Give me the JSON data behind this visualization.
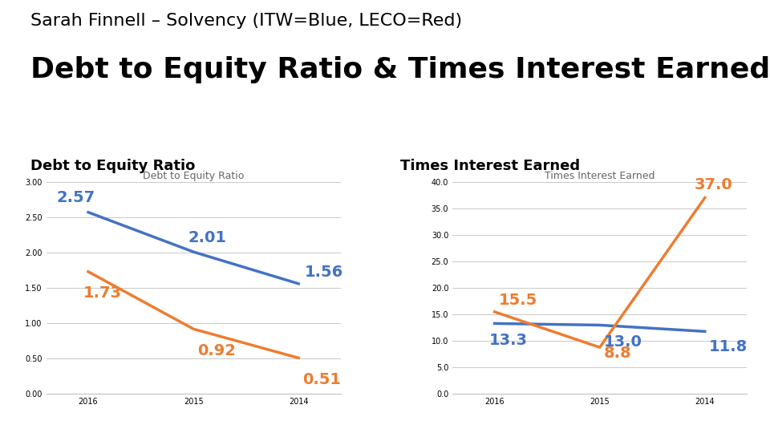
{
  "title_line1": "Sarah Finnell – Solvency (ITW=Blue, LECO=Red)",
  "title_line2": "Debt to Equity Ratio & Times Interest Earned",
  "years": [
    "2016",
    "2015",
    "2014"
  ],
  "dte_section_label": "Debt to Equity Ratio",
  "dte_chart_label": "Debt to Equity Ratio",
  "itw_dte": [
    2.57,
    2.01,
    1.56
  ],
  "leco_dte": [
    1.73,
    0.92,
    0.51
  ],
  "dte_ylim": [
    0.0,
    3.0
  ],
  "dte_yticks": [
    0.0,
    0.5,
    1.0,
    1.5,
    2.0,
    2.5,
    3.0
  ],
  "tie_section_label": "Times Interest Earned",
  "tie_chart_label": "Times Interest Earned",
  "itw_tie": [
    13.3,
    13.0,
    11.8
  ],
  "leco_tie": [
    15.5,
    8.8,
    37.0
  ],
  "tie_ylim": [
    0.0,
    40.0
  ],
  "tie_yticks": [
    0.0,
    5.0,
    10.0,
    15.0,
    20.0,
    25.0,
    30.0,
    35.0,
    40.0
  ],
  "itw_color": "#4472C4",
  "leco_color": "#ED7D31",
  "bg_color": "#FFFFFF",
  "grid_color": "#C0C0C0",
  "line_width": 2.5,
  "title1_fontsize": 16,
  "title2_fontsize": 26,
  "section_label_fontsize": 13,
  "chart_label_fontsize": 9,
  "tick_fontsize": 7,
  "data_label_fontsize": 14
}
